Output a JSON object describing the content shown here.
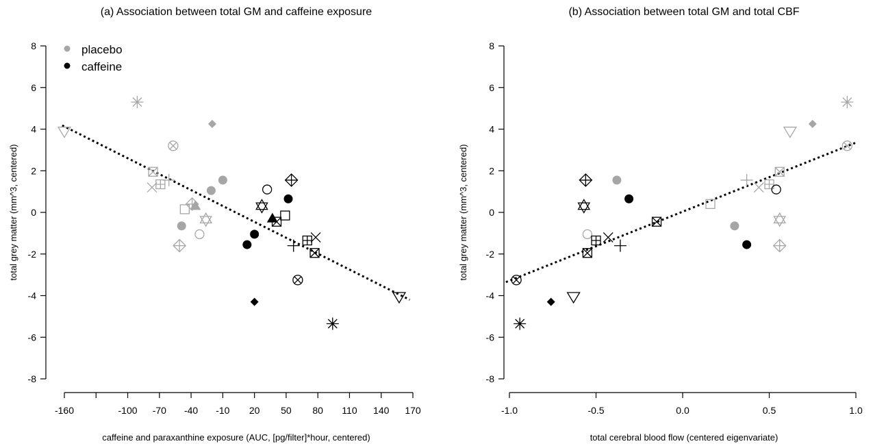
{
  "colors": {
    "placebo": "#a6a6a6",
    "caffeine": "#000000",
    "axis": "#000000",
    "trend": "#000000"
  },
  "legend": {
    "placement": "top-left",
    "items": [
      {
        "label": "placebo",
        "color": "#a6a6a6",
        "marker": "filled-circle"
      },
      {
        "label": "caffeine",
        "color": "#000000",
        "marker": "filled-circle"
      }
    ]
  },
  "chart_data": [
    {
      "type": "scatter",
      "title": "(a) Association between total GM and caffeine exposure",
      "xlabel": "caffeine and paraxanthine exposure (AUC, [pg/filter]*hour, centered)",
      "ylabel": "total grey matter (mm^3, centered)",
      "xlim": [
        -160,
        170
      ],
      "ylim": [
        -8,
        8
      ],
      "xticks": [
        -160,
        -130,
        -100,
        -70,
        -40,
        -10,
        20,
        50,
        80,
        110,
        140,
        170
      ],
      "xtick_labels": [
        "-160",
        "",
        "-100",
        "-70",
        "-40",
        "-10",
        "20",
        "50",
        "80",
        "110",
        "140",
        "170"
      ],
      "yticks": [
        -8,
        -6,
        -4,
        -2,
        0,
        2,
        4,
        6,
        8
      ],
      "ytick_labels": [
        "-8",
        "-6",
        "-4",
        "-2",
        "0",
        "2",
        "4",
        "6",
        "8"
      ],
      "grid": false,
      "trend_line": {
        "style": "dotted",
        "x": [
          -162,
          167
        ],
        "y": [
          4.18,
          -4.2
        ]
      },
      "points": [
        {
          "group": "placebo",
          "marker": "triangle-down",
          "x": -160,
          "y": 3.9
        },
        {
          "group": "placebo",
          "marker": "asterisk",
          "x": -91,
          "y": 5.3
        },
        {
          "group": "placebo",
          "marker": "circle-x",
          "x": -57,
          "y": 3.2
        },
        {
          "group": "placebo",
          "marker": "diamond",
          "x": -20,
          "y": 4.25
        },
        {
          "group": "placebo",
          "marker": "square-x",
          "x": -76,
          "y": 1.95
        },
        {
          "group": "placebo",
          "marker": "x",
          "x": -77,
          "y": 1.2
        },
        {
          "group": "placebo",
          "marker": "square-plus",
          "x": -69,
          "y": 1.35
        },
        {
          "group": "placebo",
          "marker": "plus",
          "x": -61,
          "y": 1.55
        },
        {
          "group": "placebo",
          "marker": "circle",
          "x": -10,
          "y": 1.55
        },
        {
          "group": "placebo",
          "marker": "circle",
          "x": -21,
          "y": 1.05
        },
        {
          "group": "placebo",
          "marker": "square",
          "x": -46,
          "y": 0.15
        },
        {
          "group": "placebo",
          "marker": "triangle-up",
          "x": -36,
          "y": 0.3
        },
        {
          "group": "placebo",
          "marker": "diamond-plus",
          "x": -39,
          "y": 0.4
        },
        {
          "group": "placebo",
          "marker": "star-of-david",
          "x": -26,
          "y": -0.35
        },
        {
          "group": "placebo",
          "marker": "circle",
          "x": -49,
          "y": -0.65
        },
        {
          "group": "placebo",
          "marker": "open-circle",
          "x": -32,
          "y": -1.05
        },
        {
          "group": "placebo",
          "marker": "diamond-plus",
          "x": -51,
          "y": -1.6
        },
        {
          "group": "caffeine",
          "marker": "open-circle",
          "x": 32,
          "y": 1.1
        },
        {
          "group": "caffeine",
          "marker": "diamond-plus",
          "x": 55,
          "y": 1.55
        },
        {
          "group": "caffeine",
          "marker": "circle",
          "x": 52,
          "y": 0.65
        },
        {
          "group": "caffeine",
          "marker": "star-of-david",
          "x": 27,
          "y": 0.3
        },
        {
          "group": "caffeine",
          "marker": "triangle-up",
          "x": 37,
          "y": -0.3
        },
        {
          "group": "caffeine",
          "marker": "square-x",
          "x": 41,
          "y": -0.45
        },
        {
          "group": "caffeine",
          "marker": "square",
          "x": 49,
          "y": -0.15
        },
        {
          "group": "caffeine",
          "marker": "circle",
          "x": 20,
          "y": -1.05
        },
        {
          "group": "caffeine",
          "marker": "circle",
          "x": 13,
          "y": -1.55
        },
        {
          "group": "caffeine",
          "marker": "plus",
          "x": 57,
          "y": -1.6
        },
        {
          "group": "caffeine",
          "marker": "square-plus",
          "x": 70,
          "y": -1.35
        },
        {
          "group": "caffeine",
          "marker": "x",
          "x": 78,
          "y": -1.2
        },
        {
          "group": "caffeine",
          "marker": "square-x",
          "x": 77,
          "y": -1.95
        },
        {
          "group": "caffeine",
          "marker": "circle-x",
          "x": 61,
          "y": -3.25
        },
        {
          "group": "caffeine",
          "marker": "diamond",
          "x": 20,
          "y": -4.3
        },
        {
          "group": "caffeine",
          "marker": "asterisk",
          "x": 94,
          "y": -5.35
        },
        {
          "group": "caffeine",
          "marker": "triangle-down",
          "x": 157,
          "y": -4.05
        }
      ]
    },
    {
      "type": "scatter",
      "title": "(b) Association between total GM and total CBF",
      "xlabel": "total cerebral blood flow (centered eigenvariate)",
      "ylabel": "total grey matter (mm^3, centered)",
      "xlim": [
        -1.0,
        1.0
      ],
      "ylim": [
        -8,
        8
      ],
      "xticks": [
        -1.0,
        -0.5,
        0.0,
        0.5,
        1.0
      ],
      "xtick_labels": [
        "-1.0",
        "-0.5",
        "0.0",
        "0.5",
        "1.0"
      ],
      "yticks": [
        -8,
        -6,
        -4,
        -2,
        0,
        2,
        4,
        6,
        8
      ],
      "ytick_labels": [
        "-8",
        "-6",
        "-4",
        "-2",
        "0",
        "2",
        "4",
        "6",
        "8"
      ],
      "grid": false,
      "trend_line": {
        "style": "dotted",
        "x": [
          -1.02,
          1.0
        ],
        "y": [
          -3.35,
          3.35
        ]
      },
      "points": [
        {
          "group": "placebo",
          "marker": "asterisk",
          "x": 0.95,
          "y": 5.3
        },
        {
          "group": "placebo",
          "marker": "diamond",
          "x": 0.75,
          "y": 4.25
        },
        {
          "group": "placebo",
          "marker": "triangle-down",
          "x": 0.62,
          "y": 3.9
        },
        {
          "group": "placebo",
          "marker": "circle-x",
          "x": 0.95,
          "y": 3.2
        },
        {
          "group": "placebo",
          "marker": "square-x",
          "x": 0.56,
          "y": 1.95
        },
        {
          "group": "placebo",
          "marker": "square-plus",
          "x": 0.5,
          "y": 1.35
        },
        {
          "group": "placebo",
          "marker": "x",
          "x": 0.44,
          "y": 1.2
        },
        {
          "group": "placebo",
          "marker": "plus",
          "x": 0.37,
          "y": 1.55
        },
        {
          "group": "placebo",
          "marker": "circle",
          "x": -0.38,
          "y": 1.55
        },
        {
          "group": "placebo",
          "marker": "square",
          "x": 0.16,
          "y": 0.4
        },
        {
          "group": "placebo",
          "marker": "star-of-david",
          "x": 0.56,
          "y": -0.35
        },
        {
          "group": "placebo",
          "marker": "circle",
          "x": 0.3,
          "y": -0.65
        },
        {
          "group": "placebo",
          "marker": "open-circle",
          "x": -0.55,
          "y": -1.05
        },
        {
          "group": "placebo",
          "marker": "diamond-plus",
          "x": 0.56,
          "y": -1.6
        },
        {
          "group": "caffeine",
          "marker": "diamond-plus",
          "x": -0.56,
          "y": 1.55
        },
        {
          "group": "caffeine",
          "marker": "star-of-david",
          "x": -0.57,
          "y": 0.3
        },
        {
          "group": "caffeine",
          "marker": "circle",
          "x": -0.31,
          "y": 0.65
        },
        {
          "group": "caffeine",
          "marker": "open-circle",
          "x": 0.54,
          "y": 1.1
        },
        {
          "group": "caffeine",
          "marker": "square-x",
          "x": -0.15,
          "y": -0.45
        },
        {
          "group": "caffeine",
          "marker": "square-plus",
          "x": -0.5,
          "y": -1.35
        },
        {
          "group": "caffeine",
          "marker": "x",
          "x": -0.43,
          "y": -1.2
        },
        {
          "group": "caffeine",
          "marker": "plus",
          "x": -0.36,
          "y": -1.6
        },
        {
          "group": "caffeine",
          "marker": "square-x",
          "x": -0.55,
          "y": -1.95
        },
        {
          "group": "caffeine",
          "marker": "circle",
          "x": 0.37,
          "y": -1.55
        },
        {
          "group": "caffeine",
          "marker": "triangle-down",
          "x": -0.63,
          "y": -4.05
        },
        {
          "group": "caffeine",
          "marker": "diamond",
          "x": -0.76,
          "y": -4.3
        },
        {
          "group": "caffeine",
          "marker": "circle-x",
          "x": -0.96,
          "y": -3.25
        },
        {
          "group": "caffeine",
          "marker": "asterisk",
          "x": -0.94,
          "y": -5.35
        }
      ]
    }
  ]
}
